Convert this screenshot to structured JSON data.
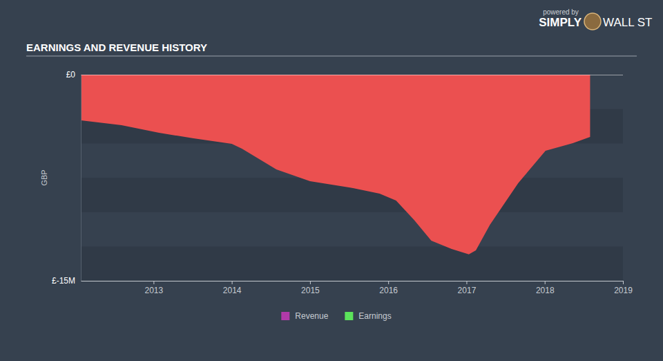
{
  "chart_data": {
    "type": "area",
    "title": "EARNINGS AND REVENUE HISTORY",
    "annotations": [
      "powered by",
      "SIMPLY",
      "WALL ST"
    ],
    "ylabel": "GBP",
    "x": [
      2012.07,
      2012.59,
      2013.07,
      2013.51,
      2014.0,
      2014.13,
      2014.57,
      2015.0,
      2015.55,
      2015.89,
      2016.1,
      2016.33,
      2016.55,
      2016.81,
      2017.03,
      2017.12,
      2017.3,
      2017.66,
      2018.01,
      2018.36,
      2018.58
    ],
    "series": [
      {
        "name": "Revenue",
        "color": "#b03aa9",
        "values": [
          null,
          null,
          null,
          null,
          null,
          null,
          null,
          null,
          null,
          null,
          null,
          null,
          null,
          null,
          null,
          null,
          null,
          null,
          null,
          null,
          null
        ]
      },
      {
        "name": "Earnings",
        "color": "#5be35b",
        "values": [
          -3.32,
          -3.67,
          -4.23,
          -4.63,
          -5.03,
          -5.39,
          -6.9,
          -7.75,
          -8.25,
          -8.66,
          -9.16,
          -10.57,
          -12.08,
          -12.68,
          -13.08,
          -12.78,
          -10.92,
          -7.9,
          -5.54,
          -4.98,
          -4.53
        ]
      }
    ],
    "xlim": [
      2012.07,
      2019
    ],
    "xticks": [
      2013,
      2014,
      2015,
      2016,
      2017,
      2018,
      2019
    ],
    "ylim": [
      -15,
      0
    ],
    "yticks": [
      {
        "value": 0,
        "label": "£0"
      },
      {
        "value": -15,
        "label": "£-15M"
      }
    ],
    "legend": "bottom",
    "grid": true
  }
}
